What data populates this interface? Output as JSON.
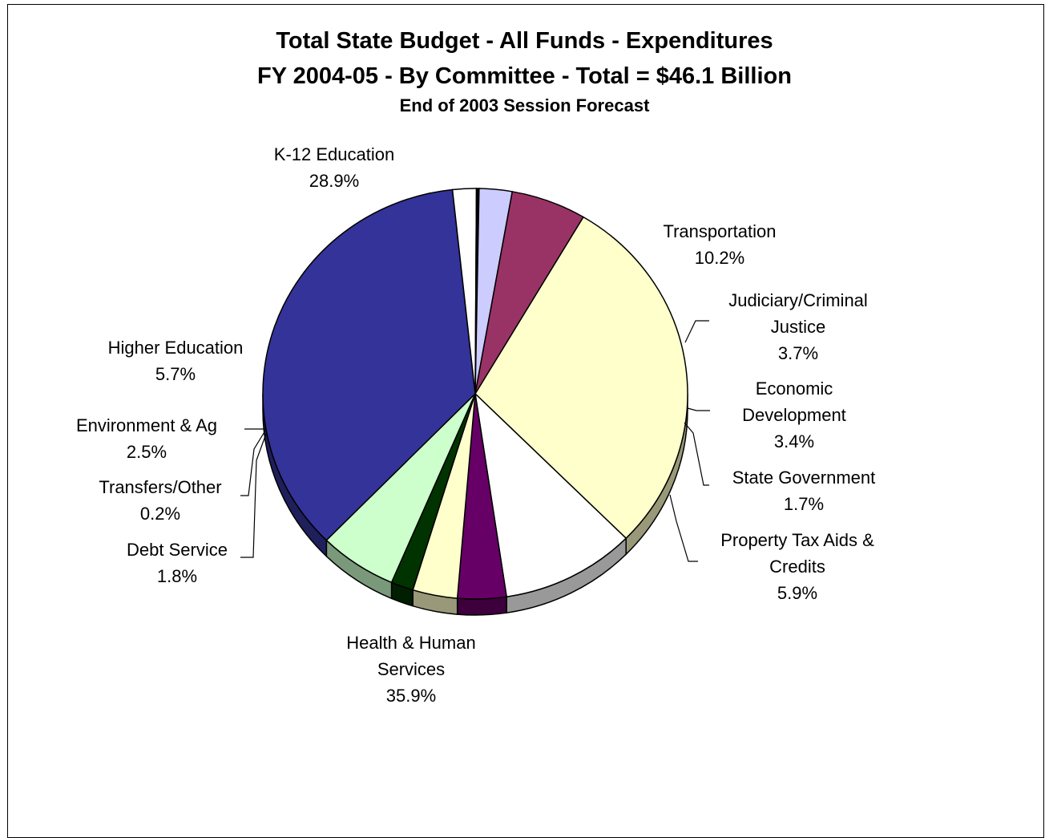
{
  "chart_data": {
    "type": "pie",
    "title": "Total State Budget - All Funds - Expenditures",
    "subtitle": "FY 2004-05 - By Committee - Total = $46.1 Billion",
    "subtitle2": "End of 2003 Session Forecast",
    "slices": [
      {
        "label": "K-12 Education",
        "value": 28.9,
        "display": "28.9%",
        "color": "#FFFFCC"
      },
      {
        "label": "Transportation",
        "value": 10.2,
        "display": "10.2%",
        "color": "#FFFFFF"
      },
      {
        "label": "Judiciary/Criminal Justice",
        "value": 3.7,
        "display": "3.7%",
        "color": "#660066"
      },
      {
        "label": "Economic Development",
        "value": 3.4,
        "display": "3.4%",
        "color": "#FFFFCC"
      },
      {
        "label": "State Government",
        "value": 1.7,
        "display": "1.7%",
        "color": "#003300"
      },
      {
        "label": "Property Tax Aids & Credits",
        "value": 5.9,
        "display": "5.9%",
        "color": "#CCFFCC"
      },
      {
        "label": "Health & Human Services",
        "value": 35.9,
        "display": "35.9%",
        "color": "#333399"
      },
      {
        "label": "Debt Service",
        "value": 1.8,
        "display": "1.8%",
        "color": "#FFFFFF"
      },
      {
        "label": "Transfers/Other",
        "value": 0.2,
        "display": "0.2%",
        "color": "#000000"
      },
      {
        "label": "Environment & Ag",
        "value": 2.5,
        "display": "2.5%",
        "color": "#CCCCFF"
      },
      {
        "label": "Higher Education",
        "value": 5.7,
        "display": "5.7%",
        "color": "#993366"
      }
    ]
  }
}
